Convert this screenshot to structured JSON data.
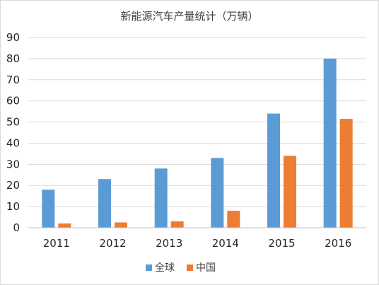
{
  "chart_data": {
    "type": "bar",
    "title": "新能源汽车产量统计（万辆）",
    "categories": [
      "2011",
      "2012",
      "2013",
      "2014",
      "2015",
      "2016"
    ],
    "series": [
      {
        "name": "全球",
        "color": "#5b9bd5",
        "values": [
          18,
          23,
          28,
          33,
          54,
          80
        ]
      },
      {
        "name": "中国",
        "color": "#ed7d31",
        "values": [
          2,
          2.5,
          3,
          8,
          34,
          51.5
        ]
      }
    ],
    "ylim": [
      0,
      90
    ],
    "yticks": [
      0,
      10,
      20,
      30,
      40,
      50,
      60,
      70,
      80,
      90
    ],
    "grid": true,
    "legend": "bottom"
  }
}
